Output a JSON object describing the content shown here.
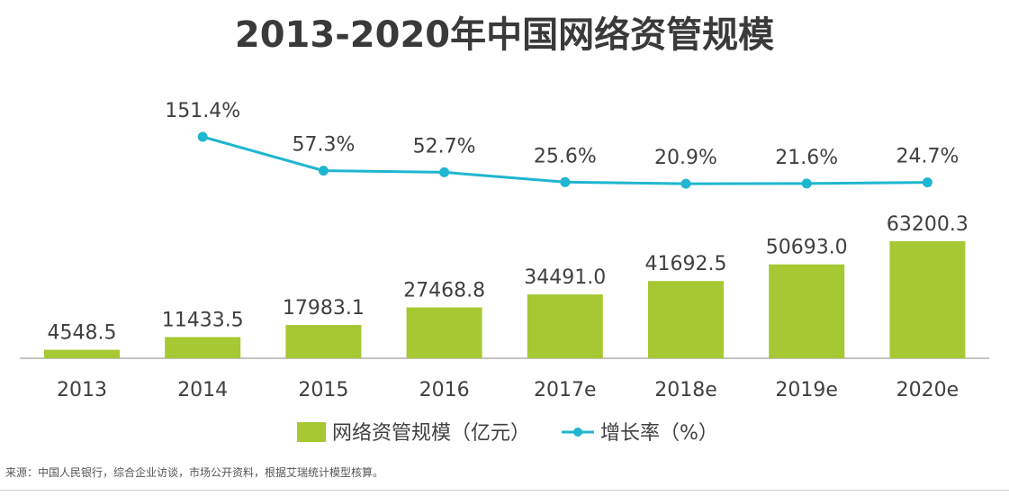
{
  "chart_data": {
    "type": "bar+line",
    "title": "2013-2020年中国网络资管规模",
    "categories": [
      "2013",
      "2014",
      "2015",
      "2016",
      "2017e",
      "2018e",
      "2019e",
      "2020e"
    ],
    "series": [
      {
        "name": "网络资管规模（亿元）",
        "type": "bar",
        "color": "#a6c832",
        "values": [
          4548.5,
          11433.5,
          17983.1,
          27468.8,
          34491.0,
          41692.5,
          50693.0,
          63200.3
        ],
        "labels": [
          "4548.5",
          "11433.5",
          "17983.1",
          "27468.8",
          "34491.0",
          "41692.5",
          "50693.0",
          "63200.3"
        ]
      },
      {
        "name": "增长率（%）",
        "type": "line",
        "color": "#1fb6d0",
        "values": [
          null,
          151.4,
          57.3,
          52.7,
          25.6,
          20.9,
          21.6,
          24.7
        ],
        "labels": [
          "",
          "151.4%",
          "57.3%",
          "52.7%",
          "25.6%",
          "20.9%",
          "21.6%",
          "24.7%"
        ]
      }
    ],
    "xlabel": "",
    "ylabel": "",
    "grid": false,
    "legend": "bottom-center"
  },
  "source": "来源：中国人民银行，综合企业访谈，市场公开资料，根据艾瑞统计模型核算。"
}
